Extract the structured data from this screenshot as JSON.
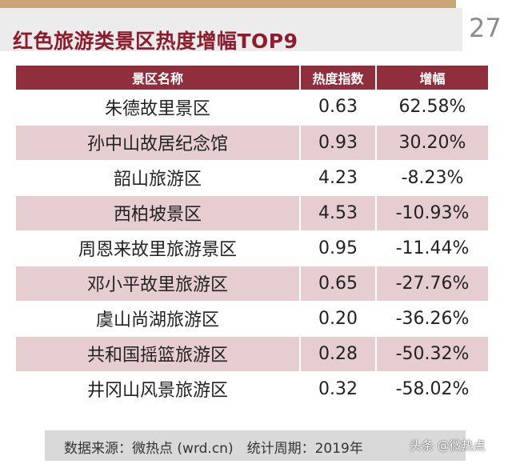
{
  "header": {
    "title": "红色旅游类景区热度增幅TOP9",
    "page_number": "27"
  },
  "table": {
    "columns": [
      "景区名称",
      "热度指数",
      "增幅"
    ],
    "rows": [
      {
        "name": "朱德故里景区",
        "index": "0.63",
        "increase": "62.58%"
      },
      {
        "name": "孙中山故居纪念馆",
        "index": "0.93",
        "increase": "30.20%"
      },
      {
        "name": "韶山旅游区",
        "index": "4.23",
        "increase": "-8.23%"
      },
      {
        "name": "西柏坡景区",
        "index": "4.53",
        "increase": "-10.93%"
      },
      {
        "name": "周恩来故里旅游景区",
        "index": "0.95",
        "increase": "-11.44%"
      },
      {
        "name": "邓小平故里旅游区",
        "index": "0.65",
        "increase": "-27.76%"
      },
      {
        "name": "虞山尚湖旅游区",
        "index": "0.20",
        "increase": "-36.26%"
      },
      {
        "name": "共和国摇篮旅游区",
        "index": "0.28",
        "increase": "-50.32%"
      },
      {
        "name": "井冈山风景旅游区",
        "index": "0.32",
        "increase": "-58.02%"
      }
    ]
  },
  "footer": {
    "source_text": "数据来源：微热点 (wrd.cn)　统计周期：2019年",
    "watermark": "头条 @微热点"
  },
  "colors": {
    "title": "#8e1c2c",
    "header_row": "#8f2f3d",
    "stripe": "#e6cdd0",
    "accent_bar": "#c8a574"
  }
}
